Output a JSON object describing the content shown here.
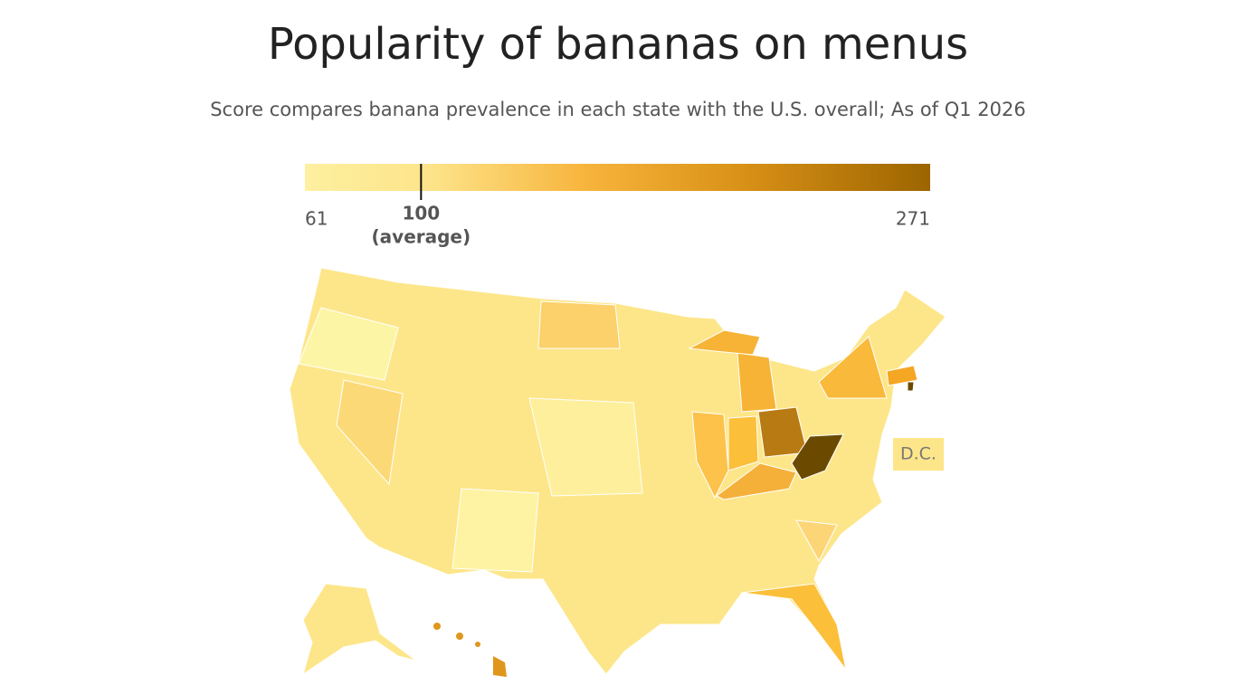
{
  "title": "Popularity of bananas on menus",
  "subtitle": "Score compares banana prevalence in each state with the U.S. overall; As of Q1 2026",
  "legend": {
    "min": 61,
    "max": 271,
    "average": 100,
    "average_note": "(average)"
  },
  "dc_label": "D.C."
}
